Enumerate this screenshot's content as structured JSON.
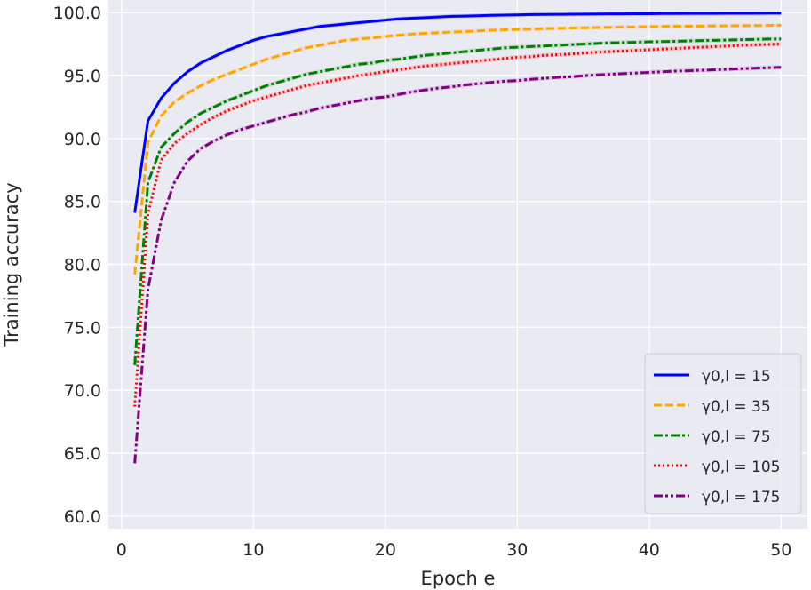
{
  "chart_data": {
    "type": "line",
    "xlabel": "Epoch e",
    "ylabel": "Training accuracy",
    "xlim": [
      -1,
      52
    ],
    "ylim": [
      59,
      101
    ],
    "xticks": [
      "0",
      "10",
      "20",
      "30",
      "40",
      "50"
    ],
    "xtick_values": [
      0,
      10,
      20,
      30,
      40,
      50
    ],
    "yticks": [
      "60.0",
      "65.0",
      "70.0",
      "75.0",
      "80.0",
      "85.0",
      "90.0",
      "95.0",
      "100.0"
    ],
    "ytick_values": [
      60,
      65,
      70,
      75,
      80,
      85,
      90,
      95,
      100
    ],
    "grid": true,
    "legend_position": "lower-right",
    "x": [
      1,
      2,
      3,
      4,
      5,
      6,
      7,
      8,
      9,
      10,
      11,
      12,
      13,
      14,
      15,
      16,
      17,
      18,
      19,
      20,
      21,
      22,
      23,
      24,
      25,
      26,
      27,
      28,
      29,
      30,
      31,
      32,
      33,
      34,
      35,
      36,
      37,
      38,
      39,
      40,
      41,
      42,
      43,
      44,
      45,
      46,
      47,
      48,
      49,
      50
    ],
    "series": [
      {
        "name": "γ0,l = 15",
        "color": "#0000ff",
        "dash": "solid",
        "values": [
          84.1,
          91.4,
          93.2,
          94.4,
          95.3,
          96.0,
          96.5,
          97.0,
          97.4,
          97.8,
          98.1,
          98.3,
          98.5,
          98.7,
          98.9,
          99.0,
          99.1,
          99.2,
          99.3,
          99.4,
          99.5,
          99.55,
          99.6,
          99.65,
          99.7,
          99.72,
          99.75,
          99.78,
          99.8,
          99.82,
          99.84,
          99.85,
          99.86,
          99.87,
          99.88,
          99.89,
          99.9,
          99.9,
          99.91,
          99.91,
          99.92,
          99.92,
          99.93,
          99.93,
          99.93,
          99.94,
          99.94,
          99.94,
          99.95,
          99.95
        ]
      },
      {
        "name": "γ0,l = 35",
        "color": "#ffa500",
        "dash": "dashed",
        "values": [
          79.2,
          89.7,
          91.8,
          92.9,
          93.6,
          94.2,
          94.7,
          95.1,
          95.5,
          95.9,
          96.3,
          96.6,
          96.9,
          97.2,
          97.4,
          97.6,
          97.8,
          97.9,
          98.0,
          98.1,
          98.2,
          98.3,
          98.35,
          98.4,
          98.45,
          98.5,
          98.55,
          98.6,
          98.63,
          98.66,
          98.69,
          98.72,
          98.75,
          98.77,
          98.79,
          98.81,
          98.83,
          98.85,
          98.86,
          98.88,
          98.9,
          98.91,
          98.92,
          98.93,
          98.94,
          98.95,
          98.96,
          98.97,
          98.98,
          98.99
        ]
      },
      {
        "name": "γ0,l = 75",
        "color": "#008000",
        "dash": "dashdot",
        "values": [
          72.0,
          86.5,
          89.3,
          90.4,
          91.3,
          92.0,
          92.5,
          93.0,
          93.4,
          93.8,
          94.2,
          94.5,
          94.8,
          95.1,
          95.3,
          95.5,
          95.7,
          95.9,
          96.0,
          96.2,
          96.3,
          96.45,
          96.6,
          96.7,
          96.8,
          96.9,
          97.0,
          97.1,
          97.2,
          97.25,
          97.3,
          97.35,
          97.4,
          97.45,
          97.5,
          97.55,
          97.6,
          97.62,
          97.65,
          97.68,
          97.7,
          97.72,
          97.75,
          97.78,
          97.8,
          97.82,
          97.85,
          97.87,
          97.9,
          97.9
        ]
      },
      {
        "name": "γ0,l = 105",
        "color": "#ff0000",
        "dash": "dotted",
        "values": [
          68.7,
          84.0,
          88.3,
          89.6,
          90.4,
          91.1,
          91.7,
          92.2,
          92.6,
          93.0,
          93.3,
          93.6,
          93.9,
          94.2,
          94.4,
          94.6,
          94.8,
          95.0,
          95.15,
          95.3,
          95.45,
          95.6,
          95.75,
          95.85,
          95.95,
          96.05,
          96.15,
          96.25,
          96.35,
          96.45,
          96.5,
          96.6,
          96.65,
          96.7,
          96.78,
          96.85,
          96.9,
          96.95,
          97.0,
          97.05,
          97.1,
          97.15,
          97.2,
          97.25,
          97.3,
          97.35,
          97.4,
          97.43,
          97.47,
          97.5
        ]
      },
      {
        "name": "γ0,l = 175",
        "color": "#800080",
        "dash": "dashdotdot",
        "values": [
          64.2,
          78.0,
          83.5,
          86.5,
          88.2,
          89.2,
          89.8,
          90.3,
          90.7,
          91.0,
          91.3,
          91.6,
          91.9,
          92.1,
          92.4,
          92.6,
          92.8,
          93.0,
          93.2,
          93.3,
          93.5,
          93.7,
          93.85,
          94.0,
          94.1,
          94.25,
          94.35,
          94.45,
          94.55,
          94.6,
          94.7,
          94.78,
          94.85,
          94.9,
          94.98,
          95.05,
          95.1,
          95.15,
          95.2,
          95.25,
          95.3,
          95.35,
          95.38,
          95.42,
          95.46,
          95.5,
          95.54,
          95.58,
          95.62,
          95.65
        ]
      }
    ]
  }
}
